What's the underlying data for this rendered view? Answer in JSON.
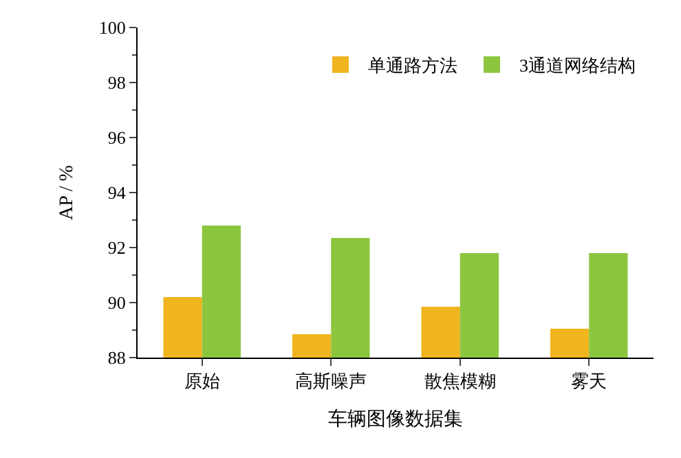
{
  "chart_data": {
    "type": "bar",
    "xlabel": "车辆图像数据集",
    "ylabel": "AP / %",
    "categories": [
      "原始",
      "高斯噪声",
      "散焦模糊",
      "雾天"
    ],
    "series": [
      {
        "name": "单通路方法",
        "color": "#f0b41e",
        "values": [
          90.2,
          88.85,
          89.85,
          89.05
        ]
      },
      {
        "name": "3通道网络结构",
        "color": "#8cc63e",
        "values": [
          92.8,
          92.35,
          91.8,
          91.8
        ]
      }
    ],
    "ylim": [
      88,
      100
    ],
    "yticks": [
      88,
      90,
      92,
      94,
      96,
      98,
      100
    ],
    "grid": false,
    "legend": "top right"
  }
}
